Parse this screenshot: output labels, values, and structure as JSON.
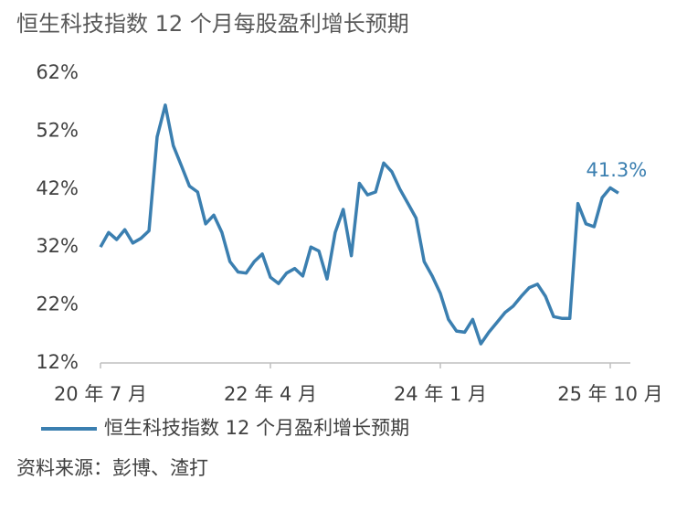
{
  "chart_data": {
    "type": "line",
    "title": "恒生科技指数 12 个月每股盈利增长预期",
    "categories": [
      "20 年 7 月",
      null,
      null,
      null,
      null,
      null,
      null,
      null,
      null,
      null,
      null,
      null,
      null,
      null,
      null,
      null,
      null,
      null,
      null,
      null,
      null,
      "22 年 4 月",
      null,
      null,
      null,
      null,
      null,
      null,
      null,
      null,
      null,
      null,
      null,
      null,
      null,
      null,
      null,
      null,
      null,
      null,
      null,
      null,
      "24 年 1 月",
      null,
      null,
      null,
      null,
      null,
      null,
      null,
      null,
      null,
      null,
      null,
      null,
      null,
      null,
      null,
      null,
      null,
      null,
      null,
      null,
      "25 年 10 月",
      null
    ],
    "series": [
      {
        "name": "恒生科技指数 12 个月盈利增长预期",
        "color": "#3b7fb0",
        "values": [
          32,
          34.5,
          33.3,
          35,
          32.7,
          33.5,
          34.8,
          51,
          56.5,
          49.5,
          46,
          42.5,
          41.5,
          36,
          37.5,
          34.5,
          29.5,
          27.7,
          27.5,
          29.5,
          30.8,
          26.8,
          25.7,
          27.5,
          28.3,
          27,
          32,
          31.3,
          26.5,
          34.5,
          38.5,
          30.5,
          43,
          41,
          41.5,
          46.5,
          45,
          42,
          39.5,
          37,
          29.5,
          27,
          24,
          19.5,
          17.5,
          17.3,
          19.5,
          15.3,
          17.3,
          19,
          20.7,
          21.8,
          23.5,
          25,
          25.6,
          23.5,
          20,
          19.7,
          19.7,
          39.5,
          36,
          35.5,
          40.5,
          42.2,
          41.3
        ],
        "value_labels": [
          null,
          null,
          null,
          null,
          null,
          null,
          null,
          null,
          null,
          null,
          null,
          null,
          null,
          null,
          null,
          null,
          null,
          null,
          null,
          null,
          null,
          null,
          null,
          null,
          null,
          null,
          null,
          null,
          null,
          null,
          null,
          null,
          null,
          null,
          null,
          null,
          null,
          null,
          null,
          null,
          null,
          null,
          null,
          null,
          null,
          null,
          null,
          null,
          null,
          null,
          null,
          null,
          null,
          null,
          null,
          null,
          null,
          null,
          null,
          null,
          null,
          null,
          null,
          null,
          "41.3%"
        ]
      }
    ],
    "ylim": [
      12,
      62
    ],
    "yticks": [
      {
        "value": 12,
        "label": "12%"
      },
      {
        "value": 22,
        "label": "22%"
      },
      {
        "value": 32,
        "label": "32%"
      },
      {
        "value": 42,
        "label": "42%"
      },
      {
        "value": 52,
        "label": "52%"
      },
      {
        "value": 62,
        "label": "62%"
      }
    ],
    "grid": false
  },
  "source": "资料来源：彭博、渣打"
}
